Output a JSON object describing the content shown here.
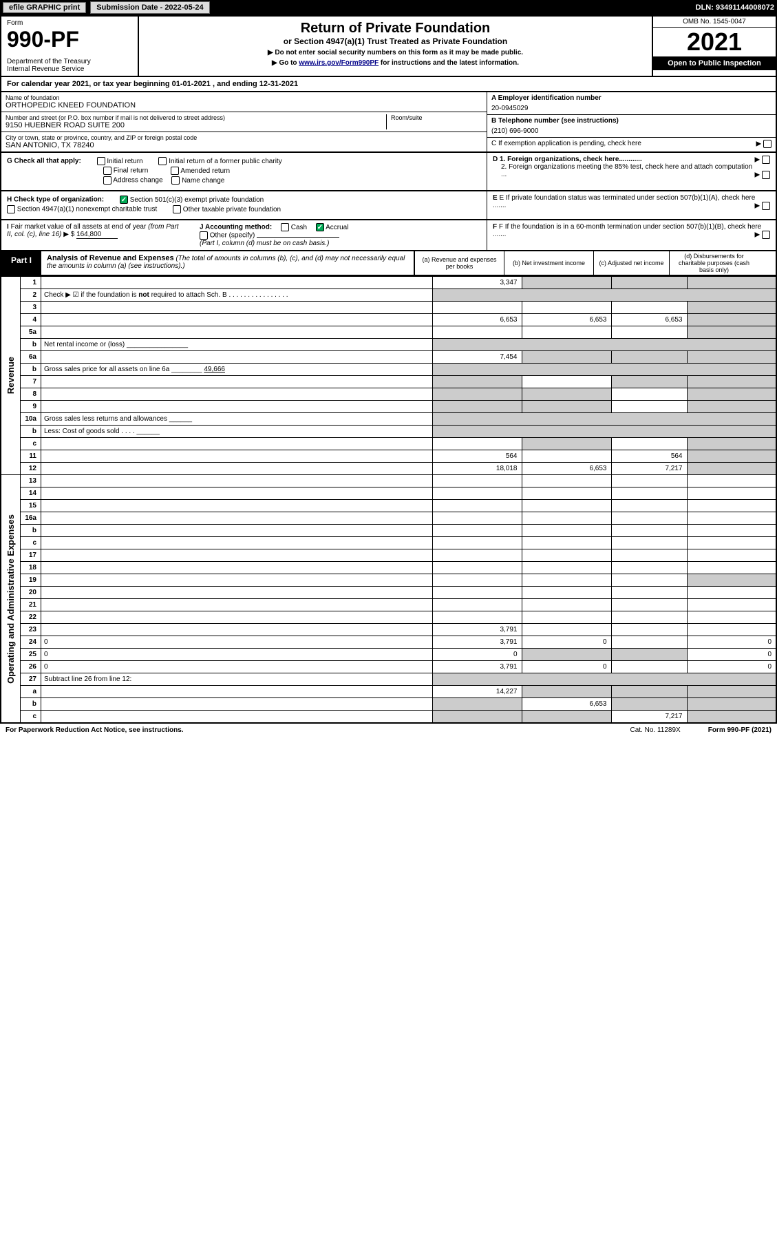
{
  "efile": {
    "btn1": "efile GRAPHIC print",
    "submission_label": "Submission Date - 2022-05-24",
    "dln": "DLN: 93491144008072"
  },
  "header": {
    "form_label": "Form",
    "form_number": "990-PF",
    "dept": "Department of the Treasury\nInternal Revenue Service",
    "title": "Return of Private Foundation",
    "subtitle": "or Section 4947(a)(1) Trust Treated as Private Foundation",
    "note1": "▶ Do not enter social security numbers on this form as it may be made public.",
    "note2": "▶ Go to ",
    "note2_link": "www.irs.gov/Form990PF",
    "note2_tail": " for instructions and the latest information.",
    "omb": "OMB No. 1545-0047",
    "year": "2021",
    "open": "Open to Public Inspection"
  },
  "cal_year": "For calendar year 2021, or tax year beginning 01-01-2021             , and ending 12-31-2021",
  "info": {
    "name_label": "Name of foundation",
    "name": "ORTHOPEDIC KNEED FOUNDATION",
    "addr_label": "Number and street (or P.O. box number if mail is not delivered to street address)",
    "addr": "9150 HUEBNER ROAD SUITE 200",
    "room_label": "Room/suite",
    "city_label": "City or town, state or province, country, and ZIP or foreign postal code",
    "city": "SAN ANTONIO, TX  78240",
    "a_label": "A Employer identification number",
    "a_val": "20-0945029",
    "b_label": "B Telephone number (see instructions)",
    "b_val": "(210) 696-9000",
    "c_label": "C If exemption application is pending, check here",
    "d1": "D 1. Foreign organizations, check here............",
    "d2": "2. Foreign organizations meeting the 85% test, check here and attach computation ...",
    "e": "E If private foundation status was terminated under section 507(b)(1)(A), check here .......",
    "f": "F If the foundation is in a 60-month termination under section 507(b)(1)(B), check here .......",
    "g": "G Check all that apply:",
    "g_opts": [
      "Initial return",
      "Initial return of a former public charity",
      "Final return",
      "Amended return",
      "Address change",
      "Name change"
    ],
    "h": "H Check type of organization:",
    "h1": "Section 501(c)(3) exempt private foundation",
    "h2": "Section 4947(a)(1) nonexempt charitable trust",
    "h3": "Other taxable private foundation",
    "i": "I Fair market value of all assets at end of year (from Part II, col. (c), line 16) ▶ $",
    "i_val": "164,800",
    "j": "J Accounting method:",
    "j_cash": "Cash",
    "j_accrual": "Accrual",
    "j_other": "Other (specify)",
    "j_note": "(Part I, column (d) must be on cash basis.)"
  },
  "part1": {
    "tab": "Part I",
    "title": "Analysis of Revenue and Expenses",
    "title_note": "(The total of amounts in columns (b), (c), and (d) may not necessarily equal the amounts in column (a) (see instructions).)",
    "col_a": "(a) Revenue and expenses per books",
    "col_b": "(b) Net investment income",
    "col_c": "(c) Adjusted net income",
    "col_d": "(d) Disbursements for charitable purposes (cash basis only)"
  },
  "side": {
    "revenue": "Revenue",
    "expenses": "Operating and Administrative Expenses"
  },
  "rows": [
    {
      "n": "1",
      "d": "",
      "a": "3,347",
      "b": "",
      "c": "",
      "shade_b": true,
      "shade_c": true,
      "shade_d": true
    },
    {
      "n": "2",
      "d": "Check ▶ ☑ if the foundation is <b>not</b> required to attach Sch. B  .  .  .  .  .  .  .  .  .  .  .  .  .  .  .  .",
      "a": "",
      "shade_all": true,
      "no_cols": true
    },
    {
      "n": "3",
      "d": "",
      "a": "",
      "b": "",
      "c": "",
      "shade_d": true
    },
    {
      "n": "4",
      "d": "",
      "a": "6,653",
      "b": "6,653",
      "c": "6,653",
      "shade_d": true
    },
    {
      "n": "5a",
      "d": "",
      "a": "",
      "b": "",
      "c": "",
      "shade_d": true
    },
    {
      "n": "b",
      "d": "Net rental income or (loss) ________________",
      "a": "",
      "shade_all": true,
      "no_cols": true
    },
    {
      "n": "6a",
      "d": "",
      "a": "7,454",
      "b": "",
      "c": "",
      "shade_b": true,
      "shade_c": true,
      "shade_d": true
    },
    {
      "n": "b",
      "d": "Gross sales price for all assets on line 6a ________ <u>49,666</u>",
      "a": "",
      "shade_all": true,
      "no_cols": true
    },
    {
      "n": "7",
      "d": "",
      "a": "",
      "b": "",
      "c": "",
      "shade_a": true,
      "shade_c": true,
      "shade_d": true
    },
    {
      "n": "8",
      "d": "",
      "a": "",
      "b": "",
      "c": "",
      "shade_a": true,
      "shade_b": true,
      "shade_d": true
    },
    {
      "n": "9",
      "d": "",
      "a": "",
      "b": "",
      "c": "",
      "shade_a": true,
      "shade_b": true,
      "shade_d": true
    },
    {
      "n": "10a",
      "d": "Gross sales less returns and allowances ______",
      "a": "",
      "shade_all": true,
      "no_cols": true
    },
    {
      "n": "b",
      "d": "Less: Cost of goods sold   .   .   .   . ______",
      "a": "",
      "shade_all": true,
      "no_cols": true
    },
    {
      "n": "c",
      "d": "",
      "a": "",
      "b": "",
      "c": "",
      "shade_b": true,
      "shade_d": true
    },
    {
      "n": "11",
      "d": "",
      "a": "564",
      "b": "",
      "c": "564",
      "shade_d": true
    },
    {
      "n": "12",
      "d": "",
      "a": "18,018",
      "b": "6,653",
      "c": "7,217",
      "shade_d": true
    },
    {
      "n": "13",
      "d": "",
      "a": "",
      "b": "",
      "c": ""
    },
    {
      "n": "14",
      "d": "",
      "a": "",
      "b": "",
      "c": ""
    },
    {
      "n": "15",
      "d": "",
      "a": "",
      "b": "",
      "c": ""
    },
    {
      "n": "16a",
      "d": "",
      "a": "",
      "b": "",
      "c": ""
    },
    {
      "n": "b",
      "d": "",
      "a": "",
      "b": "",
      "c": ""
    },
    {
      "n": "c",
      "d": "",
      "a": "",
      "b": "",
      "c": ""
    },
    {
      "n": "17",
      "d": "",
      "a": "",
      "b": "",
      "c": ""
    },
    {
      "n": "18",
      "d": "",
      "a": "",
      "b": "",
      "c": ""
    },
    {
      "n": "19",
      "d": "",
      "a": "",
      "b": "",
      "c": "",
      "shade_d": true
    },
    {
      "n": "20",
      "d": "",
      "a": "",
      "b": "",
      "c": ""
    },
    {
      "n": "21",
      "d": "",
      "a": "",
      "b": "",
      "c": ""
    },
    {
      "n": "22",
      "d": "",
      "a": "",
      "b": "",
      "c": ""
    },
    {
      "n": "23",
      "d": "",
      "a": "3,791",
      "b": "",
      "c": ""
    },
    {
      "n": "24",
      "d": "0",
      "a": "3,791",
      "b": "0",
      "c": ""
    },
    {
      "n": "25",
      "d": "0",
      "a": "0",
      "b": "",
      "c": "",
      "shade_b": true,
      "shade_c": true
    },
    {
      "n": "26",
      "d": "0",
      "a": "3,791",
      "b": "0",
      "c": ""
    },
    {
      "n": "27",
      "d": "Subtract line 26 from line 12:",
      "a": "",
      "shade_all": true,
      "no_cols": true
    },
    {
      "n": "a",
      "d": "",
      "a": "14,227",
      "b": "",
      "c": "",
      "shade_b": true,
      "shade_c": true,
      "shade_d": true
    },
    {
      "n": "b",
      "d": "",
      "a": "",
      "b": "6,653",
      "c": "",
      "shade_a": true,
      "shade_c": true,
      "shade_d": true
    },
    {
      "n": "c",
      "d": "",
      "a": "",
      "b": "",
      "c": "7,217",
      "shade_a": true,
      "shade_b": true,
      "shade_d": true
    }
  ],
  "footer": {
    "pra": "For Paperwork Reduction Act Notice, see instructions.",
    "cat": "Cat. No. 11289X",
    "form": "Form 990-PF (2021)"
  }
}
